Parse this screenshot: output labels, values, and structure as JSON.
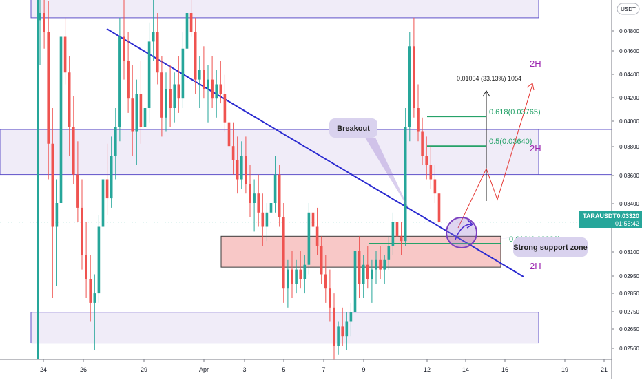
{
  "header": {
    "currency_badge": "USDT"
  },
  "chart_data": {
    "type": "candlestick",
    "symbol": "TARAUSDT",
    "price_label": "0.03320",
    "countdown_label": "01:55:42",
    "x_ticks": [
      "24",
      "26",
      "29",
      "Apr",
      "3",
      "5",
      "7",
      "9",
      "12",
      "14",
      "16",
      "19",
      "21"
    ],
    "y_ticks": [
      "0.04800",
      "0.04600",
      "0.04400",
      "0.04200",
      "0.04000",
      "0.03800",
      "0.03600",
      "0.03400",
      "0.03100",
      "0.02950",
      "0.02850",
      "0.02750",
      "0.02650",
      "0.02560"
    ],
    "last_price": 0.0332,
    "grid": false,
    "zones": [
      {
        "name": "upper-resistance-zone",
        "label": "2H",
        "from": 0.0418,
        "to": 0.0439
      },
      {
        "name": "middle-resistance-zone",
        "label": "2H",
        "from": 0.0352,
        "to": 0.0371
      },
      {
        "name": "lower-support-zone",
        "label": "2H",
        "from": 0.0281,
        "to": 0.0294
      }
    ],
    "support_zone": {
      "from": 0.0313,
      "to": 0.0326
    },
    "fib_levels": [
      {
        "label": "0.618(0.03765)",
        "value": 0.03765
      },
      {
        "label": "0.5(0.03640)",
        "value": 0.0364
      },
      {
        "label": "0.618(0.03229)",
        "value": 0.03229
      }
    ],
    "measure_label": "0.01054 (33.13%) 1054",
    "annotations": {
      "breakout": "Breakout",
      "support": "Strong support zone"
    },
    "candles": [
      [
        0.0417,
        0.0432,
        0.0398,
        0.042
      ],
      [
        0.042,
        0.044,
        0.0405,
        0.0412
      ],
      [
        0.0412,
        0.0425,
        0.035,
        0.0365
      ],
      [
        0.0365,
        0.038,
        0.03,
        0.033
      ],
      [
        0.033,
        0.035,
        0.0305,
        0.034
      ],
      [
        0.034,
        0.0415,
        0.0335,
        0.041
      ],
      [
        0.041,
        0.0418,
        0.039,
        0.0395
      ],
      [
        0.0395,
        0.0402,
        0.036,
        0.0372
      ],
      [
        0.0372,
        0.0385,
        0.0348,
        0.0352
      ],
      [
        0.0352,
        0.0366,
        0.0332,
        0.0338
      ],
      [
        0.0338,
        0.035,
        0.0312,
        0.0318
      ],
      [
        0.0318,
        0.0332,
        0.03,
        0.0308
      ],
      [
        0.0308,
        0.0318,
        0.029,
        0.0298
      ],
      [
        0.0298,
        0.031,
        0.0278,
        0.0302
      ],
      [
        0.0302,
        0.0335,
        0.0298,
        0.033
      ],
      [
        0.033,
        0.0356,
        0.0325,
        0.035
      ],
      [
        0.035,
        0.0365,
        0.0335,
        0.0342
      ],
      [
        0.0342,
        0.0368,
        0.0338,
        0.036
      ],
      [
        0.036,
        0.038,
        0.035,
        0.0372
      ],
      [
        0.0372,
        0.0418,
        0.0366,
        0.041
      ],
      [
        0.041,
        0.048,
        0.0392,
        0.04
      ],
      [
        0.04,
        0.0412,
        0.0378,
        0.0384
      ],
      [
        0.0384,
        0.0398,
        0.036,
        0.037
      ],
      [
        0.037,
        0.0392,
        0.0356,
        0.0386
      ],
      [
        0.0386,
        0.04,
        0.0365,
        0.0372
      ],
      [
        0.0372,
        0.0388,
        0.036,
        0.038
      ],
      [
        0.038,
        0.0416,
        0.0374,
        0.0408
      ],
      [
        0.0408,
        0.0466,
        0.04,
        0.0412
      ],
      [
        0.0412,
        0.042,
        0.039,
        0.0395
      ],
      [
        0.0395,
        0.0402,
        0.0368,
        0.0376
      ],
      [
        0.0376,
        0.0395,
        0.037,
        0.0388
      ],
      [
        0.0388,
        0.0398,
        0.0372,
        0.038
      ],
      [
        0.038,
        0.0395,
        0.0374,
        0.039
      ],
      [
        0.039,
        0.0402,
        0.0378,
        0.0384
      ],
      [
        0.0384,
        0.0412,
        0.038,
        0.0405
      ],
      [
        0.0405,
        0.044,
        0.0398,
        0.042
      ],
      [
        0.042,
        0.045,
        0.041,
        0.0412
      ],
      [
        0.0412,
        0.0418,
        0.0386,
        0.0392
      ],
      [
        0.0392,
        0.0402,
        0.038,
        0.0396
      ],
      [
        0.0396,
        0.0406,
        0.0384,
        0.0388
      ],
      [
        0.0388,
        0.0398,
        0.0374,
        0.0392
      ],
      [
        0.0392,
        0.0402,
        0.038,
        0.0384
      ],
      [
        0.0384,
        0.0396,
        0.0376,
        0.039
      ],
      [
        0.039,
        0.04,
        0.0382,
        0.0386
      ],
      [
        0.0386,
        0.0394,
        0.037,
        0.0374
      ],
      [
        0.0374,
        0.0386,
        0.036,
        0.0364
      ],
      [
        0.0364,
        0.0374,
        0.0352,
        0.0358
      ],
      [
        0.0358,
        0.0368,
        0.0344,
        0.035
      ],
      [
        0.035,
        0.0366,
        0.0346,
        0.036
      ],
      [
        0.036,
        0.0368,
        0.0344,
        0.0348
      ],
      [
        0.0348,
        0.0356,
        0.0334,
        0.034
      ],
      [
        0.034,
        0.035,
        0.0328,
        0.0344
      ],
      [
        0.0344,
        0.0352,
        0.033,
        0.0336
      ],
      [
        0.0336,
        0.0344,
        0.0322,
        0.033
      ],
      [
        0.033,
        0.034,
        0.0324,
        0.0336
      ],
      [
        0.0336,
        0.0348,
        0.0328,
        0.034
      ],
      [
        0.034,
        0.036,
        0.0336,
        0.0352
      ],
      [
        0.0352,
        0.0356,
        0.033,
        0.0334
      ],
      [
        0.0334,
        0.034,
        0.0298,
        0.0304
      ],
      [
        0.0304,
        0.0316,
        0.0296,
        0.0312
      ],
      [
        0.0312,
        0.032,
        0.03,
        0.0306
      ],
      [
        0.0306,
        0.0316,
        0.0302,
        0.0312
      ],
      [
        0.0312,
        0.032,
        0.0304,
        0.0308
      ],
      [
        0.0308,
        0.0318,
        0.0302,
        0.0314
      ],
      [
        0.0314,
        0.034,
        0.031,
        0.0336
      ],
      [
        0.0336,
        0.0346,
        0.0324,
        0.033
      ],
      [
        0.033,
        0.0338,
        0.0318,
        0.0322
      ],
      [
        0.0322,
        0.0326,
        0.0306,
        0.031
      ],
      [
        0.031,
        0.0318,
        0.0298,
        0.0304
      ],
      [
        0.0304,
        0.0312,
        0.029,
        0.0296
      ],
      [
        0.0296,
        0.0302,
        0.0274,
        0.028
      ],
      [
        0.028,
        0.029,
        0.0276,
        0.0288
      ],
      [
        0.0288,
        0.0296,
        0.028,
        0.0284
      ],
      [
        0.0284,
        0.0294,
        0.0278,
        0.029
      ],
      [
        0.029,
        0.0298,
        0.0284,
        0.0294
      ],
      [
        0.0294,
        0.0328,
        0.0292,
        0.032
      ],
      [
        0.032,
        0.0326,
        0.03,
        0.0306
      ],
      [
        0.0306,
        0.0318,
        0.03,
        0.0314
      ],
      [
        0.0314,
        0.0322,
        0.0304,
        0.0308
      ],
      [
        0.0308,
        0.0316,
        0.0298,
        0.0312
      ],
      [
        0.0312,
        0.032,
        0.0306,
        0.0316
      ],
      [
        0.0316,
        0.0322,
        0.0308,
        0.0312
      ],
      [
        0.0312,
        0.0318,
        0.0306,
        0.0316
      ],
      [
        0.0316,
        0.0326,
        0.0312,
        0.0322
      ],
      [
        0.0322,
        0.0336,
        0.0318,
        0.0332
      ],
      [
        0.0332,
        0.0338,
        0.0322,
        0.0326
      ],
      [
        0.0326,
        0.0332,
        0.0318,
        0.0324
      ],
      [
        0.0324,
        0.038,
        0.0322,
        0.0372
      ],
      [
        0.0372,
        0.0412,
        0.0366,
        0.0406
      ],
      [
        0.0406,
        0.0418,
        0.0376,
        0.038
      ],
      [
        0.038,
        0.039,
        0.0366,
        0.037
      ],
      [
        0.037,
        0.0376,
        0.0356,
        0.036
      ],
      [
        0.036,
        0.0368,
        0.035,
        0.0356
      ],
      [
        0.0356,
        0.0364,
        0.0346,
        0.035
      ],
      [
        0.035,
        0.0356,
        0.034,
        0.0344
      ],
      [
        0.0344,
        0.035,
        0.0328,
        0.0332
      ]
    ],
    "colors": {
      "up": "#26a69a",
      "down": "#ef5350",
      "trendline": "#2a2ad0",
      "zone_border": "#5f52c9",
      "zone_fill": "rgba(149,117,205,0.14)",
      "support_fill": "#f5b6b4",
      "label": "#9c27b0",
      "fib": "#26a269",
      "price_tag": "#26a69a"
    }
  }
}
